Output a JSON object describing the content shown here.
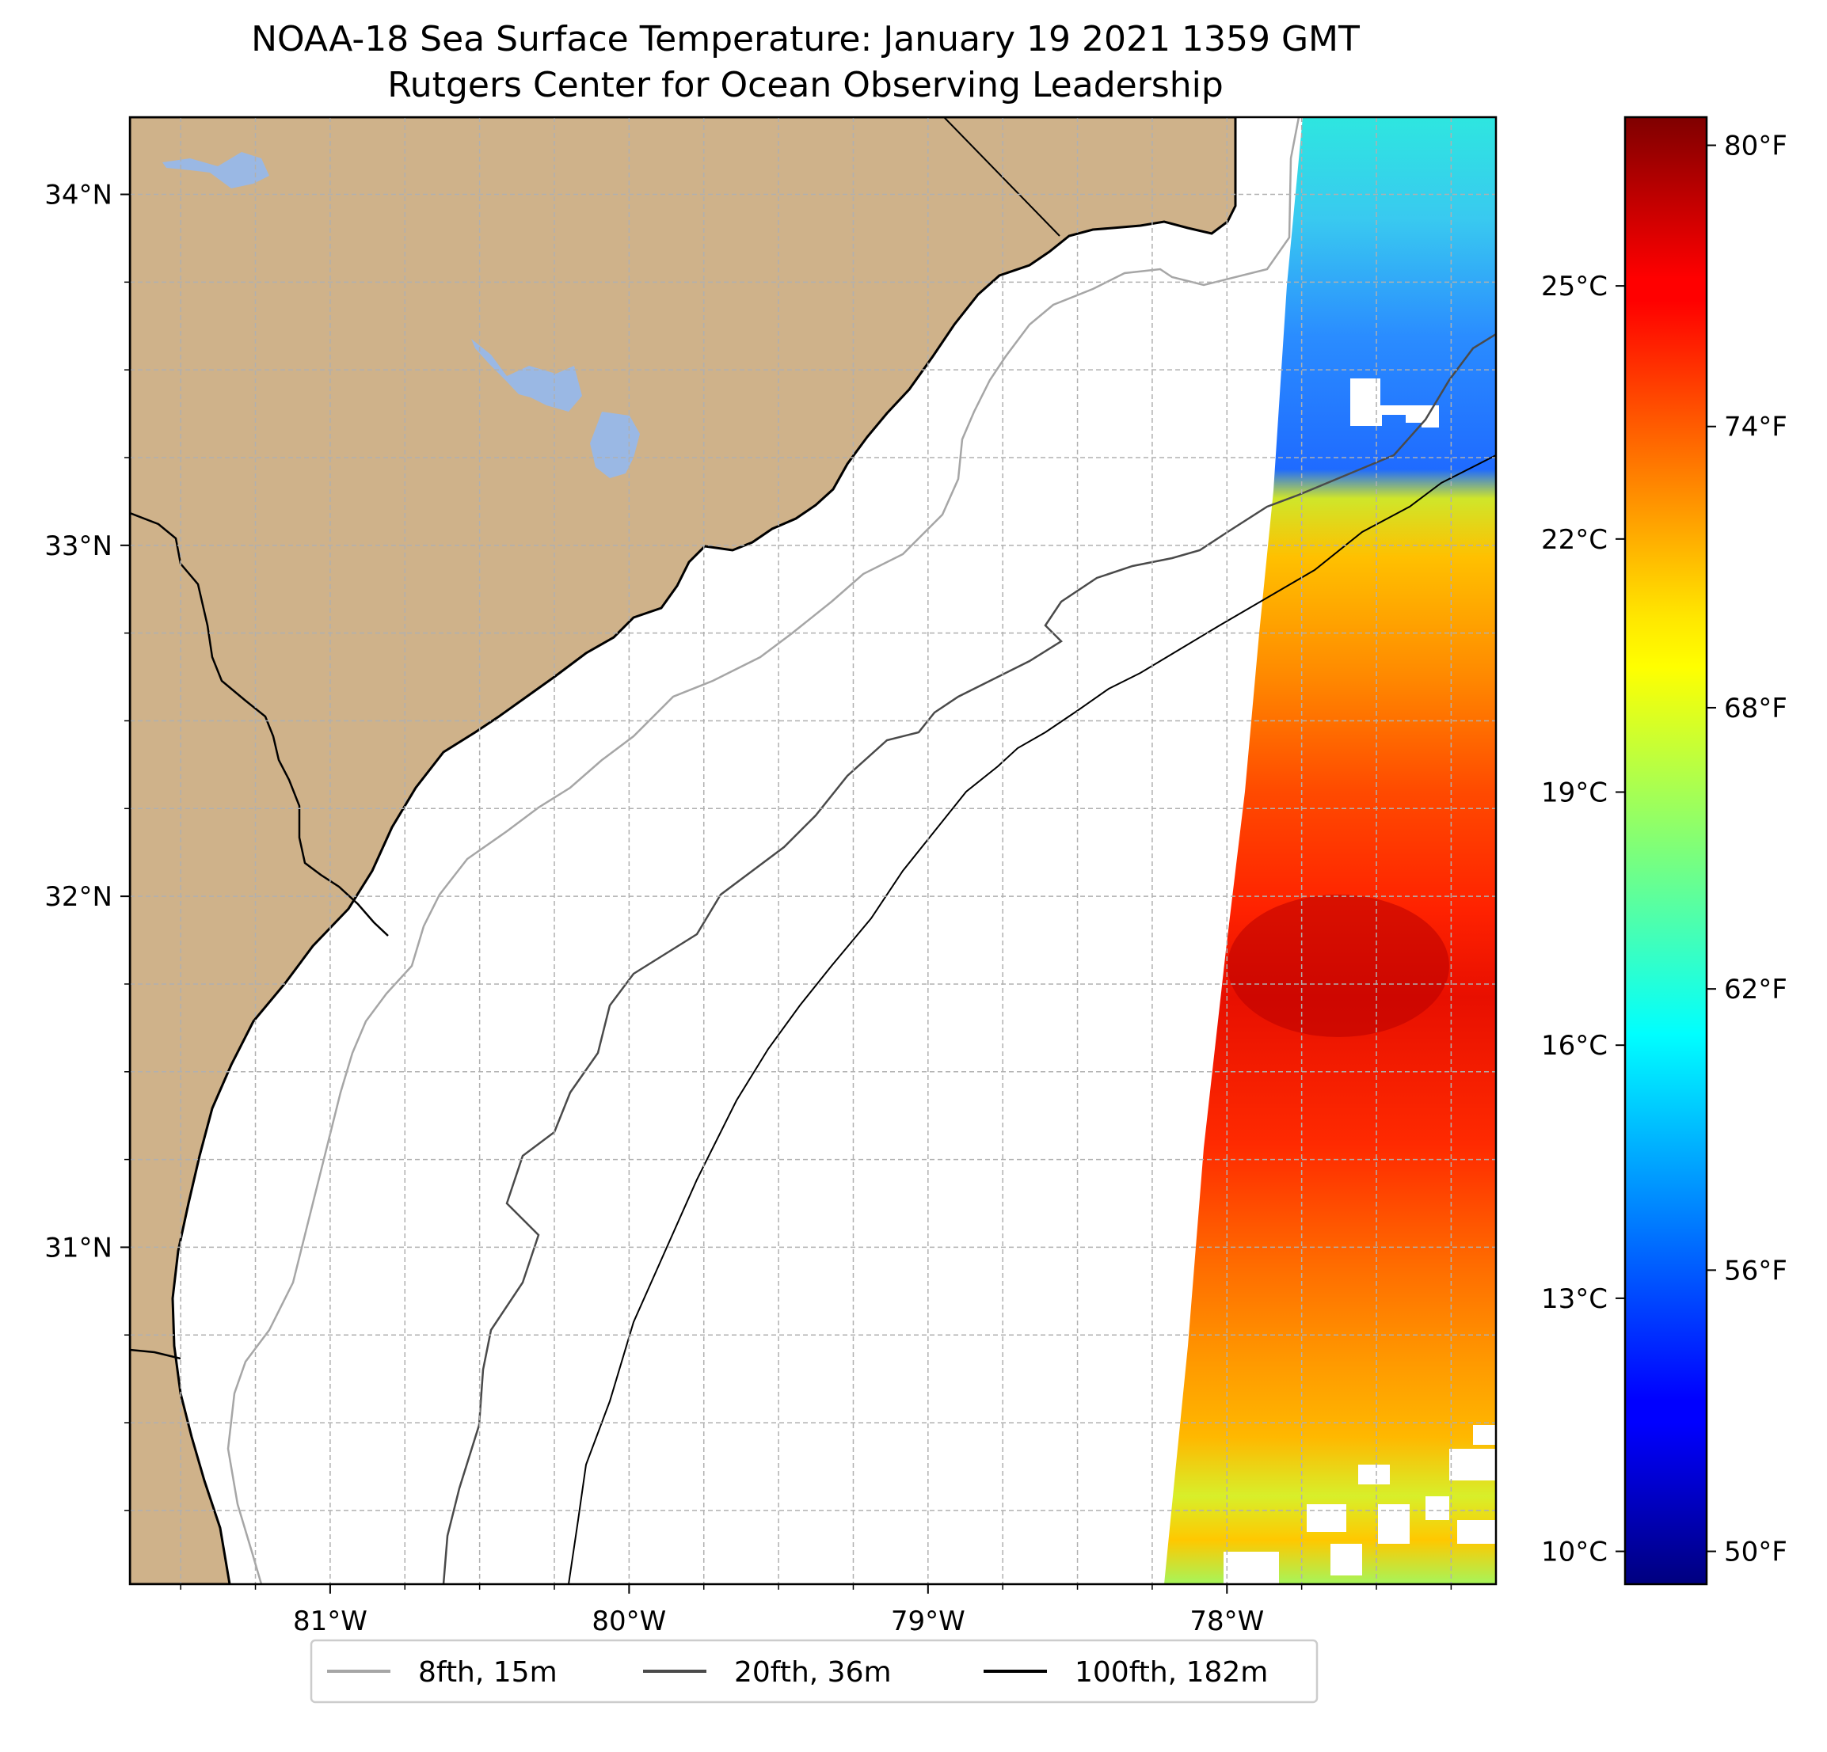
{
  "title": "NOAA-18 Sea Surface Temperature: January 19 2021 1359 GMT",
  "subtitle": "Rutgers Center for Ocean Observing Leadership",
  "colors": {
    "land": "#cfb28a",
    "lake": "#9ab8e4",
    "ocean": "#ffffff",
    "grid": "#b0b0b0",
    "isobath_8fth": "#a6a6a6",
    "isobath_20fth": "#4a4a4a",
    "isobath_100fth": "#000000"
  },
  "map": {
    "lon_ticks": [
      {
        "value": -81,
        "label": "81°W"
      },
      {
        "value": -80,
        "label": "80°W"
      },
      {
        "value": -79,
        "label": "79°W"
      },
      {
        "value": -78,
        "label": "78°W"
      }
    ],
    "lat_ticks": [
      {
        "value": 34,
        "label": "34°N"
      },
      {
        "value": 33,
        "label": "33°N"
      },
      {
        "value": 32,
        "label": "32°N"
      },
      {
        "value": 31,
        "label": "31°N"
      }
    ],
    "lon_range": [
      -81.67,
      -77.1
    ],
    "lat_range": [
      30.04,
      34.22
    ]
  },
  "colorbar": {
    "colormap": "jet",
    "celsius_ticks": [
      {
        "value": 10,
        "label": "10°C"
      },
      {
        "value": 13,
        "label": "13°C"
      },
      {
        "value": 16,
        "label": "16°C"
      },
      {
        "value": 19,
        "label": "19°C"
      },
      {
        "value": 22,
        "label": "22°C"
      },
      {
        "value": 25,
        "label": "25°C"
      }
    ],
    "fahrenheit_ticks": [
      {
        "value": 50,
        "label": "50°F"
      },
      {
        "value": 56,
        "label": "56°F"
      },
      {
        "value": 62,
        "label": "62°F"
      },
      {
        "value": 68,
        "label": "68°F"
      },
      {
        "value": 74,
        "label": "74°F"
      },
      {
        "value": 80,
        "label": "80°F"
      }
    ],
    "range_f": [
      49.3,
      80.6
    ]
  },
  "legend": {
    "items": [
      {
        "label": "8fth, 15m",
        "color": "#a6a6a6"
      },
      {
        "label": "20fth, 36m",
        "color": "#4a4a4a"
      },
      {
        "label": "100fth, 182m",
        "color": "#000000"
      }
    ]
  }
}
